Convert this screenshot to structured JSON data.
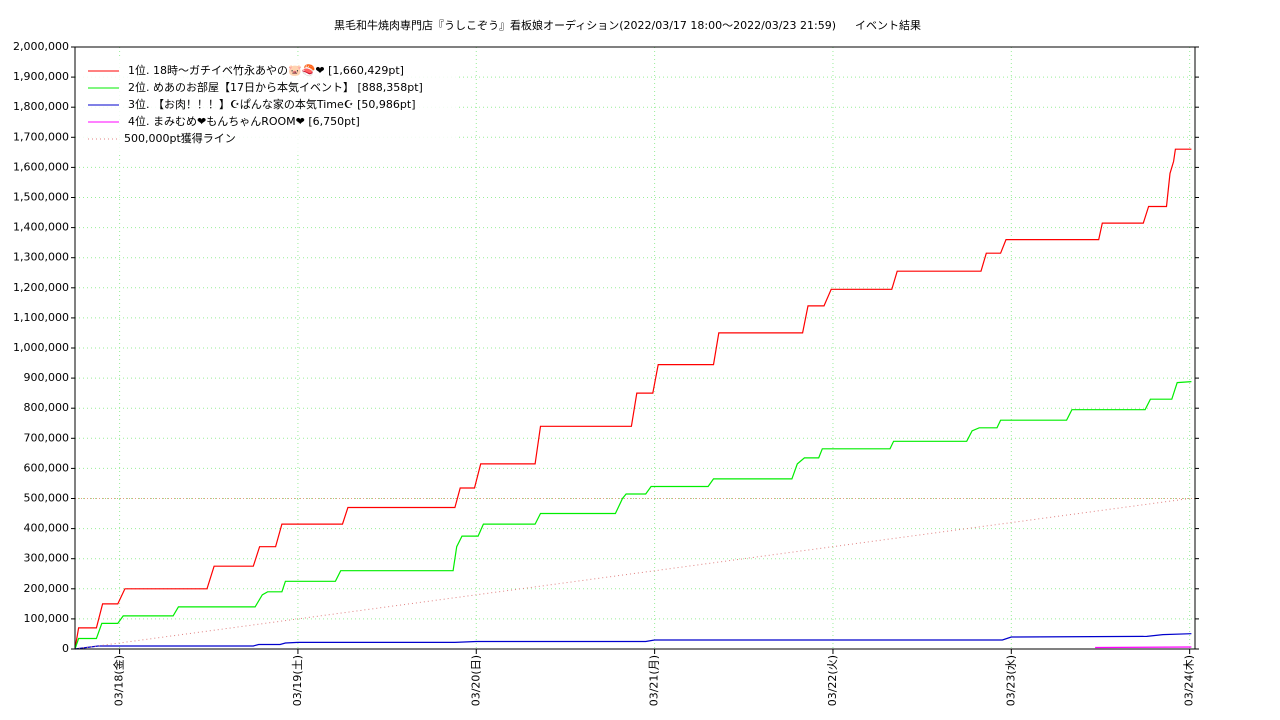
{
  "chart_data": {
    "type": "line",
    "title": "黒毛和牛焼肉専門店『うしこぞう』看板娘オーディション(2022/03/17 18:00～2022/03/23 21:59)",
    "subtitle": "イベント結果",
    "xlim": [
      17.75,
      24.03
    ],
    "xticks": [
      {
        "value": 18,
        "label": "03/18(金)"
      },
      {
        "value": 19,
        "label": "03/19(土)"
      },
      {
        "value": 20,
        "label": "03/20(日)"
      },
      {
        "value": 21,
        "label": "03/21(月)"
      },
      {
        "value": 22,
        "label": "03/22(火)"
      },
      {
        "value": 23,
        "label": "03/23(水)"
      },
      {
        "value": 24,
        "label": "03/24(木)"
      }
    ],
    "ylim": [
      0,
      2000000
    ],
    "yticks": [
      0,
      {
        "value": 100000,
        "label": "100,000"
      },
      {
        "value": 200000,
        "label": "200,000"
      },
      {
        "value": 300000,
        "label": "300,000"
      },
      {
        "value": 400000,
        "label": "400,000"
      },
      {
        "value": 500000,
        "label": "500,000"
      },
      {
        "value": 600000,
        "label": "600,000"
      },
      {
        "value": 700000,
        "label": "700,000"
      },
      {
        "value": 800000,
        "label": "800,000"
      },
      {
        "value": 900000,
        "label": "900,000"
      },
      {
        "value": 1000000,
        "label": "1,000,000"
      },
      {
        "value": 1100000,
        "label": "1,100,000"
      },
      {
        "value": 1200000,
        "label": "1,200,000"
      },
      {
        "value": 1300000,
        "label": "1,300,000"
      },
      {
        "value": 1400000,
        "label": "1,400,000"
      },
      {
        "value": 1500000,
        "label": "1,500,000"
      },
      {
        "value": 1600000,
        "label": "1,600,000"
      },
      {
        "value": 1700000,
        "label": "1,700,000"
      },
      {
        "value": 1800000,
        "label": "1,800,000"
      },
      {
        "value": 1900000,
        "label": "1,900,000"
      },
      {
        "value": 2000000,
        "label": "2,000,000"
      }
    ],
    "grid": true,
    "legend": "upper left",
    "hline": {
      "value": 500000,
      "color": "#e0a080"
    },
    "series": [
      {
        "name": "1位. 18時～ガチイベ竹永あやの🐷🍣❤ [1,660,429pt]",
        "color": "#ff0000",
        "x": [
          17.75,
          17.77,
          17.87,
          17.905,
          17.99,
          18.03,
          18.49,
          18.53,
          18.75,
          18.785,
          18.875,
          18.91,
          19.25,
          19.28,
          19.88,
          19.91,
          19.99,
          20.025,
          20.33,
          20.36,
          20.87,
          20.9,
          20.99,
          21.02,
          21.33,
          21.36,
          21.83,
          21.86,
          21.95,
          21.99,
          22.33,
          22.36,
          22.83,
          22.86,
          22.94,
          22.97,
          23.49,
          23.51,
          23.74,
          23.77,
          23.87,
          23.89,
          23.91,
          23.92,
          24.01
        ],
        "values": [
          0,
          70000,
          70000,
          150000,
          150000,
          200000,
          200000,
          275000,
          275000,
          340000,
          340000,
          415000,
          415000,
          470000,
          470000,
          535000,
          535000,
          615000,
          615000,
          740000,
          740000,
          850000,
          850000,
          945000,
          945000,
          1050000,
          1050000,
          1140000,
          1140000,
          1195000,
          1195000,
          1255000,
          1255000,
          1315000,
          1315000,
          1360000,
          1360000,
          1415000,
          1415000,
          1470000,
          1470000,
          1580000,
          1620000,
          1660429,
          1660429
        ]
      },
      {
        "name": "2位. めあのお部屋【17日から本気イベント】 [888,358pt]",
        "color": "#00ee00",
        "x": [
          17.75,
          17.77,
          17.87,
          17.9,
          17.99,
          18.02,
          18.3,
          18.33,
          18.76,
          18.8,
          18.83,
          18.91,
          18.93,
          19.21,
          19.24,
          19.87,
          19.89,
          19.92,
          20.01,
          20.04,
          20.33,
          20.36,
          20.78,
          20.82,
          20.84,
          20.95,
          20.98,
          21.3,
          21.33,
          21.77,
          21.8,
          21.84,
          21.92,
          21.94,
          22.32,
          22.34,
          22.75,
          22.78,
          22.82,
          22.92,
          22.94,
          23.31,
          23.34,
          23.75,
          23.78,
          23.9,
          23.93,
          24.01
        ],
        "values": [
          0,
          35000,
          35000,
          85000,
          85000,
          110000,
          110000,
          140000,
          140000,
          180000,
          190000,
          190000,
          225000,
          225000,
          260000,
          260000,
          340000,
          375000,
          375000,
          415000,
          415000,
          450000,
          450000,
          500000,
          515000,
          515000,
          540000,
          540000,
          565000,
          565000,
          615000,
          635000,
          635000,
          665000,
          665000,
          690000,
          690000,
          725000,
          735000,
          735000,
          760000,
          760000,
          795000,
          795000,
          830000,
          830000,
          885000,
          888358
        ]
      },
      {
        "name": "3位. 【お肉！！！】☪ぱんな家の本気Time☪ [50,986pt]",
        "color": "#0000cc",
        "x": [
          17.75,
          17.88,
          18.75,
          18.78,
          18.9,
          18.93,
          19.0,
          19.88,
          20.0,
          20.95,
          21.0,
          22.95,
          23.0,
          23.76,
          23.85,
          24.01
        ],
        "values": [
          0,
          10000,
          10000,
          15000,
          15000,
          20000,
          22000,
          22000,
          25000,
          25000,
          30000,
          30000,
          40000,
          42000,
          48000,
          50986
        ]
      },
      {
        "name": "4位. まみむめ❤もんちゃんROOM❤ [6,750pt]",
        "color": "#ff00ff",
        "x": [
          23.47,
          24.01
        ],
        "values": [
          5000,
          6750
        ]
      },
      {
        "name": "500,000pt獲得ライン",
        "color": "#e08080",
        "style": "dotted",
        "x": [
          17.75,
          24.0
        ],
        "values": [
          0,
          500000
        ]
      }
    ]
  }
}
